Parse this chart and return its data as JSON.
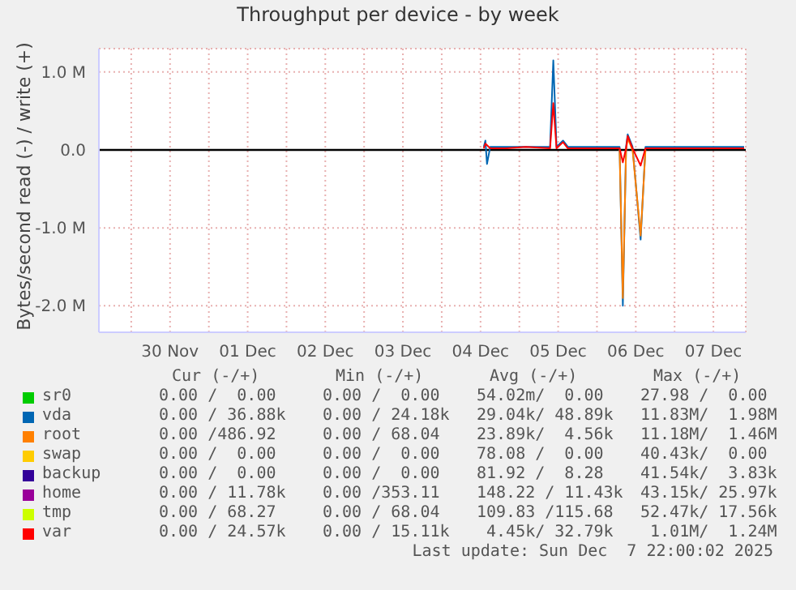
{
  "chart_data": {
    "type": "line",
    "title": "Throughput per device - by week",
    "ylabel": "Bytes/second read (-) / write (+)",
    "series": [
      {
        "name": "sr0",
        "color": "#00cc00"
      },
      {
        "name": "vda",
        "color": "#0066b3",
        "x": [
          "2025-12-04T13:00",
          "2025-12-04T13:30",
          "2025-12-04T14:00",
          "2025-12-04T15:00",
          "2025-12-04T20:00",
          "2025-12-05T02:00",
          "2025-12-05T09:30",
          "2025-12-05T10:30",
          "2025-12-05T11:30",
          "2025-12-05T13:30",
          "2025-12-05T15:00",
          "2025-12-05T22:00",
          "2025-12-06T07:00",
          "2025-12-06T08:00",
          "2025-12-06T09:00",
          "2025-12-06T09:30",
          "2025-12-06T11:00",
          "2025-12-06T13:30",
          "2025-12-06T15:00",
          "2025-12-06T22:00",
          "2025-12-07T10:00",
          "2025-12-07T21:30"
        ],
        "values": [
          40000,
          120000,
          -180000,
          40000,
          40000,
          40000,
          40000,
          1150000,
          40000,
          120000,
          40000,
          40000,
          40000,
          -2000000,
          40000,
          200000,
          40000,
          -1150000,
          40000,
          40000,
          40000,
          40000
        ]
      },
      {
        "name": "root",
        "color": "#ff8000",
        "x": [
          "2025-12-06T07:00",
          "2025-12-06T08:00",
          "2025-12-06T09:00",
          "2025-12-06T09:30",
          "2025-12-06T11:00",
          "2025-12-06T13:30",
          "2025-12-06T15:00"
        ],
        "values": [
          0,
          -1900000,
          0,
          150000,
          0,
          -1100000,
          0
        ]
      },
      {
        "name": "swap",
        "color": "#ffcc00"
      },
      {
        "name": "backup",
        "color": "#330099"
      },
      {
        "name": "home",
        "color": "#990099"
      },
      {
        "name": "tmp",
        "color": "#ccff00"
      },
      {
        "name": "var",
        "color": "#ff0000",
        "x": [
          "2025-12-04T13:00",
          "2025-12-04T13:30",
          "2025-12-04T15:00",
          "2025-12-04T20:00",
          "2025-12-05T02:00",
          "2025-12-05T09:30",
          "2025-12-05T10:30",
          "2025-12-05T11:30",
          "2025-12-05T13:30",
          "2025-12-05T15:00",
          "2025-12-05T22:00",
          "2025-12-06T07:00",
          "2025-12-06T08:00",
          "2025-12-06T09:00",
          "2025-12-06T09:30",
          "2025-12-06T11:00",
          "2025-12-06T13:30",
          "2025-12-06T15:00",
          "2025-12-06T22:00",
          "2025-12-07T10:00",
          "2025-12-07T21:30"
        ],
        "values": [
          20000,
          80000,
          20000,
          20000,
          40000,
          20000,
          600000,
          20000,
          100000,
          20000,
          20000,
          20000,
          -160000,
          20000,
          180000,
          20000,
          -200000,
          20000,
          20000,
          20000,
          20000
        ]
      }
    ],
    "xlim": [
      "2025-11-29T14:00",
      "2025-12-07T22:00"
    ],
    "xticks": [
      {
        "value": "2025-11-30T00:00",
        "label": null
      },
      {
        "value": "2025-11-30T12:00",
        "label": "30 Nov"
      },
      {
        "value": "2025-12-01T00:00",
        "label": null
      },
      {
        "value": "2025-12-01T12:00",
        "label": "01 Dec"
      },
      {
        "value": "2025-12-02T00:00",
        "label": null
      },
      {
        "value": "2025-12-02T12:00",
        "label": "02 Dec"
      },
      {
        "value": "2025-12-03T00:00",
        "label": null
      },
      {
        "value": "2025-12-03T12:00",
        "label": "03 Dec"
      },
      {
        "value": "2025-12-04T00:00",
        "label": null
      },
      {
        "value": "2025-12-04T12:00",
        "label": "04 Dec"
      },
      {
        "value": "2025-12-05T00:00",
        "label": null
      },
      {
        "value": "2025-12-05T12:00",
        "label": "05 Dec"
      },
      {
        "value": "2025-12-06T00:00",
        "label": null
      },
      {
        "value": "2025-12-06T12:00",
        "label": "06 Dec"
      },
      {
        "value": "2025-12-07T00:00",
        "label": null
      },
      {
        "value": "2025-12-07T12:00",
        "label": "07 Dec"
      }
    ],
    "ylim": [
      -2340000,
      1300000
    ],
    "yticks": [
      {
        "value": -2000000,
        "label": "-2.0 M"
      },
      {
        "value": -1000000,
        "label": "-1.0 M"
      },
      {
        "value": 0,
        "label": "0.0"
      },
      {
        "value": 1000000,
        "label": "1.0 M"
      }
    ],
    "ref_lines": [
      {
        "axis": "y",
        "value": 0,
        "color": "#000000"
      }
    ],
    "grid": true,
    "legend": "bottom",
    "annotations": [
      "Cur (-/+)",
      "Min (-/+)",
      "Avg (-/+)",
      "Max (-/+)",
      "0.00 /  0.00",
      "0.00 /  0.00",
      "54.02m/  0.00",
      "27.98 /  0.00",
      "0.00 / 36.88k",
      "0.00 / 24.18k",
      "29.04k/ 48.89k",
      "11.83M/  1.98M",
      "0.00 /486.92",
      "0.00 / 68.04",
      "23.89k/  4.56k",
      "11.18M/  1.46M",
      "0.00 /  0.00",
      "0.00 /  0.00",
      "78.08 /  0.00",
      "40.43k/  0.00",
      "0.00 /  0.00",
      "0.00 /  0.00",
      "81.92 /  8.28",
      "41.54k/  3.83k",
      "0.00 / 11.78k",
      "0.00 /353.11",
      "148.22 / 11.43k",
      "43.15k/ 25.97k",
      "0.00 / 68.27",
      "0.00 / 68.04",
      "109.83 /115.68",
      "52.47k/ 17.56k",
      "0.00 / 24.57k",
      "0.00 / 15.11k",
      " 4.45k/ 32.79k",
      " 1.01M/  1.24M",
      "Last update: Sun Dec  7 22:00:02 2025"
    ]
  }
}
